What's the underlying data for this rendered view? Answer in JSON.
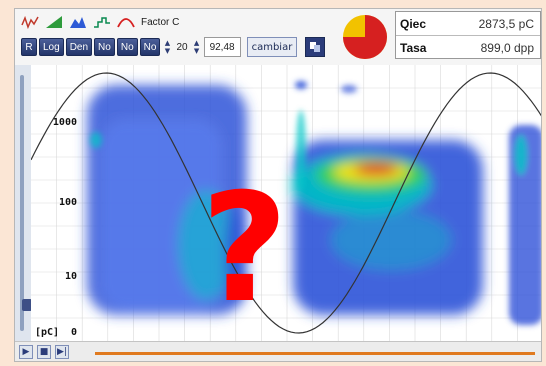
{
  "toolbar": {
    "factor_label": "Factor C",
    "buttons": [
      "R",
      "Log",
      "Den",
      "No",
      "No",
      "No"
    ],
    "spin_value_1": "20",
    "spin_value_2": "92,48",
    "combo_label": "cambiar"
  },
  "stats": {
    "rows": [
      {
        "name": "Qiec",
        "value": "2873,5 pC"
      },
      {
        "name": "Tasa",
        "value": "899,0 dpp"
      }
    ]
  },
  "pie": {
    "filled_fraction": 0.75,
    "fill_color": "#d62020",
    "empty_color": "#f2c200"
  },
  "plot": {
    "yticks": [
      {
        "label": "1000",
        "value": 1000
      },
      {
        "label": "100",
        "value": 100
      },
      {
        "label": "10",
        "value": 10
      },
      {
        "label": "0",
        "value": 0
      }
    ],
    "yunit": "[pC]",
    "overlay": "?",
    "colors": {
      "background": "#ffffff",
      "low": "#2f53d8",
      "mid": "#00c6c6",
      "high": "#ffe400",
      "peak": "#e0102a",
      "curve": "#333333",
      "overlay": "#ff0000"
    }
  },
  "slider": {
    "level": 0.08
  },
  "bottom": {
    "progress": 1.0
  }
}
